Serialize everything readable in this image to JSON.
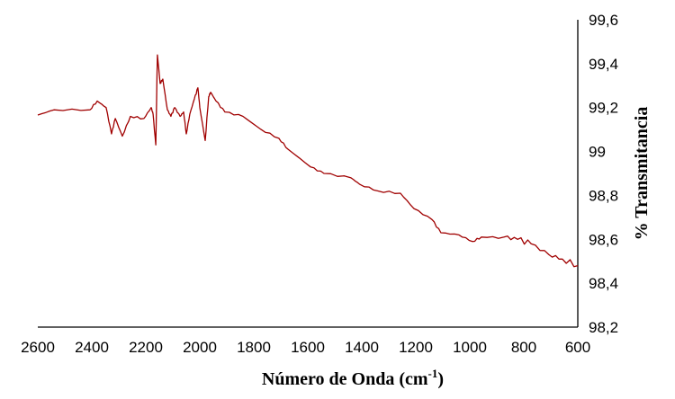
{
  "chart_data": {
    "type": "line",
    "title": "",
    "xlabel": "Número de Onda (cm",
    "xlabel_sup": "-1",
    "xlabel_end": ")",
    "ylabel": "% Transmitancia",
    "xlim": [
      2600,
      600
    ],
    "ylim": [
      98.2,
      99.6
    ],
    "x_ticks": [
      "2600",
      "2400",
      "2200",
      "2000",
      "1800",
      "1600",
      "1400",
      "1200",
      "1000",
      "800",
      "600"
    ],
    "y_ticks": [
      "98,2",
      "98,4",
      "98,6",
      "98,8",
      "99",
      "99,2",
      "99,4",
      "99,6"
    ],
    "y_axis_side": "right",
    "grid": false,
    "color": "#a00000",
    "series": [
      {
        "name": "% Transmitancia",
        "x": [
          2600,
          2540,
          2407,
          2380,
          2347,
          2327,
          2313,
          2287,
          2257,
          2207,
          2180,
          2173,
          2163,
          2157,
          2147,
          2137,
          2120,
          2107,
          2093,
          2073,
          2060,
          2050,
          2037,
          2020,
          2007,
          2000,
          1980,
          1967,
          1960,
          1940,
          1907,
          1840,
          1773,
          1707,
          1673,
          1590,
          1540,
          1440,
          1407,
          1340,
          1257,
          1207,
          1140,
          1107,
          1040,
          990,
          957,
          873,
          823,
          773,
          707,
          657,
          600
        ],
        "y": [
          99.166,
          99.19,
          99.19,
          99.23,
          99.2,
          99.08,
          99.15,
          99.07,
          99.16,
          99.15,
          99.2,
          99.17,
          99.03,
          99.44,
          99.31,
          99.33,
          99.19,
          99.16,
          99.2,
          99.16,
          99.18,
          99.08,
          99.17,
          99.24,
          99.29,
          99.2,
          99.05,
          99.25,
          99.27,
          99.23,
          99.18,
          99.16,
          99.1,
          99.06,
          99.01,
          98.93,
          98.9,
          98.88,
          98.85,
          98.82,
          98.81,
          98.74,
          98.69,
          98.63,
          98.62,
          98.59,
          98.61,
          98.61,
          98.6,
          98.58,
          98.53,
          98.51,
          98.48
        ]
      }
    ]
  }
}
